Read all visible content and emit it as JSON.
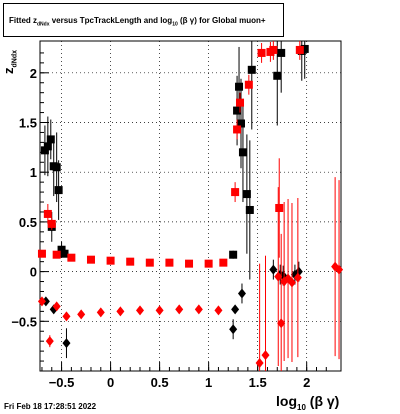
{
  "title": {
    "prefix": "Fitted  z",
    "sub1": "dNdx",
    "mid": "  versus TpcTrackLength and log",
    "sub2": "10",
    "suffix": "(β  γ) for Global muon+"
  },
  "datestamp": "Fri Feb 18 17:28:51 2022",
  "axes": {
    "xlabel_main": "log",
    "xlabel_sub": "10",
    "xlabel_tail": "(β γ)",
    "ylabel_main": "z",
    "ylabel_sub": "dNdx"
  },
  "chart_data": {
    "type": "scatter",
    "xlim": [
      -0.72,
      2.35
    ],
    "ylim": [
      -1.0,
      2.32
    ],
    "xticks": [
      -0.5,
      0,
      0.5,
      1,
      1.5,
      2
    ],
    "xtick_labels": [
      "−0.5",
      "0",
      "0.5",
      "1",
      "1.5",
      "2"
    ],
    "yticks": [
      -0.5,
      0,
      0.5,
      1,
      1.5,
      2
    ],
    "ytick_labels": [
      "−0.5",
      "0",
      "0.5",
      "1",
      "1.5",
      "2"
    ],
    "grid": true,
    "colors": {
      "black": "#000000",
      "red": "#ff0000"
    },
    "series": [
      {
        "marker": "square",
        "color": "#000000",
        "points": [
          [
            -0.67,
            1.22,
            0.25
          ],
          [
            -0.64,
            1.26,
            0.3
          ],
          [
            -0.61,
            1.33,
            0.2
          ],
          [
            -0.58,
            1.06,
            0.3
          ],
          [
            -0.55,
            1.05,
            0.35
          ],
          [
            -0.53,
            0.82,
            0.3
          ],
          [
            -0.6,
            0.45,
            0.15
          ],
          [
            -0.5,
            0.22,
            0.08
          ],
          [
            -0.47,
            0.18,
            0.03
          ],
          [
            1.25,
            0.17,
            0.04
          ],
          [
            1.29,
            1.62,
            0.35
          ],
          [
            1.31,
            1.86,
            0.4
          ],
          [
            1.33,
            1.49,
            0.45
          ],
          [
            1.35,
            1.2,
            0.5
          ],
          [
            1.39,
            0.78,
            0.6
          ],
          [
            1.42,
            0.62,
            0.7
          ],
          [
            1.44,
            2.03,
            0.6
          ],
          [
            1.7,
            1.97,
            0.5
          ],
          [
            1.74,
            2.2,
            0.4
          ],
          [
            1.95,
            2.22,
            0.3
          ],
          [
            1.98,
            2.24,
            0.3
          ]
        ]
      },
      {
        "marker": "square",
        "color": "#ff0000",
        "points": [
          [
            -0.7,
            0.18,
            0.0
          ],
          [
            -0.55,
            0.17,
            0.0
          ],
          [
            -0.4,
            0.14,
            0.0
          ],
          [
            -0.2,
            0.12,
            0.0
          ],
          [
            0.0,
            0.11,
            0.0
          ],
          [
            0.2,
            0.1,
            0.0
          ],
          [
            0.4,
            0.09,
            0.0
          ],
          [
            0.6,
            0.09,
            0.0
          ],
          [
            0.8,
            0.08,
            0.0
          ],
          [
            1.0,
            0.08,
            0.0
          ],
          [
            1.15,
            0.09,
            0.0
          ],
          [
            -0.64,
            0.58,
            0.1
          ],
          [
            -0.6,
            0.48,
            0.06
          ],
          [
            1.27,
            0.8,
            0.1
          ],
          [
            1.29,
            1.43,
            0.1
          ],
          [
            1.32,
            1.7,
            0.1
          ],
          [
            1.41,
            1.88,
            0.1
          ],
          [
            1.54,
            2.2,
            0.1
          ],
          [
            1.63,
            2.21,
            0.1
          ],
          [
            1.66,
            2.23,
            0.1
          ],
          [
            1.72,
            0.64,
            0.5
          ],
          [
            1.93,
            2.23,
            0.1
          ]
        ]
      },
      {
        "marker": "diamond",
        "color": "#000000",
        "points": [
          [
            -0.66,
            -0.3,
            0.04
          ],
          [
            -0.58,
            -0.38,
            0.04
          ],
          [
            1.27,
            -0.38,
            0.04
          ],
          [
            1.25,
            -0.58,
            0.1
          ],
          [
            1.34,
            -0.22,
            0.1
          ],
          [
            1.66,
            0.02,
            0.1
          ],
          [
            1.73,
            -0.03,
            0.1
          ],
          [
            1.76,
            -0.04,
            0.1
          ],
          [
            1.88,
            -0.03,
            0.1
          ],
          [
            1.92,
            0.0,
            0.1
          ],
          [
            -0.45,
            -0.72,
            0.15
          ]
        ]
      },
      {
        "marker": "diamond",
        "color": "#ff0000",
        "points": [
          [
            -0.7,
            -0.3,
            0.0
          ],
          [
            -0.55,
            -0.35,
            0.0
          ],
          [
            -0.45,
            -0.45,
            0.0
          ],
          [
            -0.3,
            -0.43,
            0.0
          ],
          [
            -0.1,
            -0.41,
            0.0
          ],
          [
            0.1,
            -0.4,
            0.0
          ],
          [
            0.3,
            -0.39,
            0.0
          ],
          [
            0.5,
            -0.39,
            0.0
          ],
          [
            0.7,
            -0.38,
            0.0
          ],
          [
            0.9,
            -0.38,
            0.0
          ],
          [
            1.1,
            -0.39,
            0.0
          ],
          [
            -0.62,
            -0.7,
            0.06
          ],
          [
            1.52,
            -0.92,
            1.0
          ],
          [
            1.58,
            -0.84,
            1.0
          ],
          [
            1.71,
            -0.05,
            0.9
          ],
          [
            1.74,
            -0.52,
            0.9
          ],
          [
            1.77,
            -0.1,
            0.8
          ],
          [
            1.81,
            -0.07,
            0.8
          ],
          [
            1.85,
            -0.11,
            0.8
          ],
          [
            1.91,
            -0.06,
            0.8
          ],
          [
            2.29,
            0.05,
            0.9
          ],
          [
            2.33,
            0.02,
            0.9
          ]
        ]
      }
    ]
  }
}
